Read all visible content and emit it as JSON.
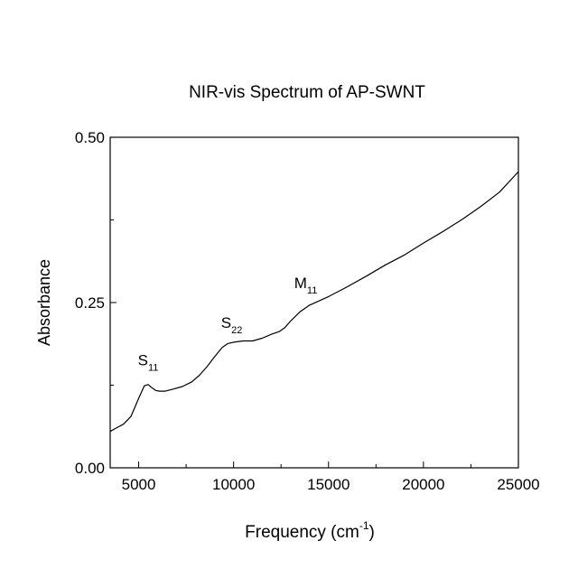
{
  "chart_data": {
    "type": "line",
    "title": "NIR-vis Spectrum of AP-SWNT",
    "xlabel": {
      "text": "Frequency (cm",
      "superscript": "-1",
      "suffix": ")"
    },
    "ylabel": "Absorbance",
    "xlim": [
      3500,
      25000
    ],
    "ylim": [
      0.0,
      0.5
    ],
    "xticks": [
      5000,
      10000,
      15000,
      20000,
      25000
    ],
    "xtick_labels": [
      "5000",
      "10000",
      "15000",
      "20000",
      "25000"
    ],
    "yticks": [
      0.0,
      0.25,
      0.5
    ],
    "ytick_labels": [
      "0.00",
      "0.25",
      "0.50"
    ],
    "grid": false,
    "series": [
      {
        "name": "AP-SWNT",
        "color": "#000000",
        "x": [
          3500,
          3800,
          4200,
          4600,
          5000,
          5300,
          5500,
          5700,
          5900,
          6100,
          6400,
          6800,
          7300,
          7800,
          8200,
          8600,
          9000,
          9400,
          9700,
          10000,
          10500,
          11000,
          11500,
          12000,
          12400,
          12700,
          13000,
          13500,
          14000,
          15000,
          16000,
          17000,
          18000,
          19000,
          20000,
          21000,
          22000,
          23000,
          24000,
          25000
        ],
        "y": [
          0.055,
          0.06,
          0.066,
          0.078,
          0.105,
          0.124,
          0.126,
          0.121,
          0.117,
          0.116,
          0.116,
          0.119,
          0.123,
          0.13,
          0.14,
          0.153,
          0.168,
          0.182,
          0.188,
          0.19,
          0.192,
          0.192,
          0.196,
          0.202,
          0.206,
          0.212,
          0.222,
          0.236,
          0.246,
          0.259,
          0.274,
          0.29,
          0.307,
          0.322,
          0.34,
          0.357,
          0.375,
          0.395,
          0.417,
          0.448
        ]
      }
    ],
    "annotations": [
      {
        "label": "S",
        "sub": "11",
        "x": 5500,
        "y": 0.155
      },
      {
        "label": "S",
        "sub": "22",
        "x": 9900,
        "y": 0.212
      },
      {
        "label": "M",
        "sub": "11",
        "x": 13800,
        "y": 0.272
      }
    ]
  }
}
